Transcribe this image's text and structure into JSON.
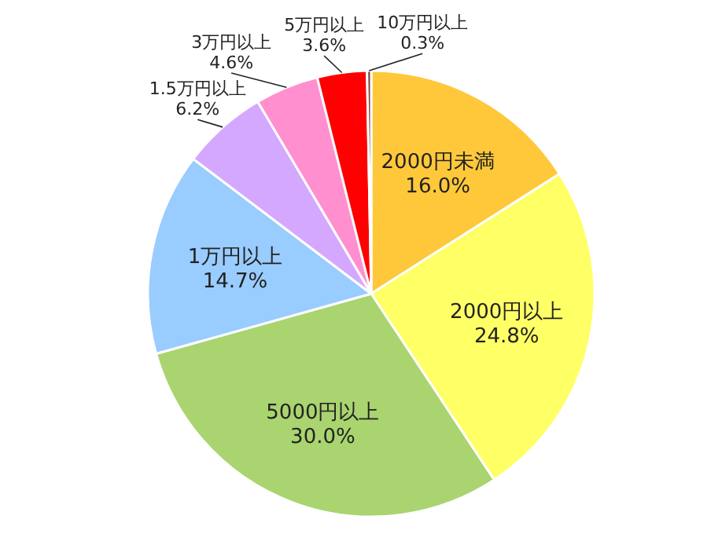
{
  "chart_data": {
    "type": "pie",
    "categories": [
      "2000円未満",
      "2000円以上",
      "5000円以上",
      "1万円以上",
      "1.5万円以上",
      "3万円以上",
      "5万円以上",
      "10万円以上"
    ],
    "values": [
      16.0,
      24.8,
      30.0,
      14.7,
      6.2,
      4.6,
      3.6,
      0.3
    ],
    "value_labels": [
      "16.0%",
      "24.8%",
      "30.0%",
      "14.7%",
      "6.2%",
      "4.6%",
      "3.6%",
      "0.3%"
    ],
    "colors": [
      "#ffc83a",
      "#ffff66",
      "#a9d46f",
      "#99ccff",
      "#d4a8ff",
      "#ff8fcf",
      "#ff0000",
      "#7f3f3f"
    ]
  }
}
